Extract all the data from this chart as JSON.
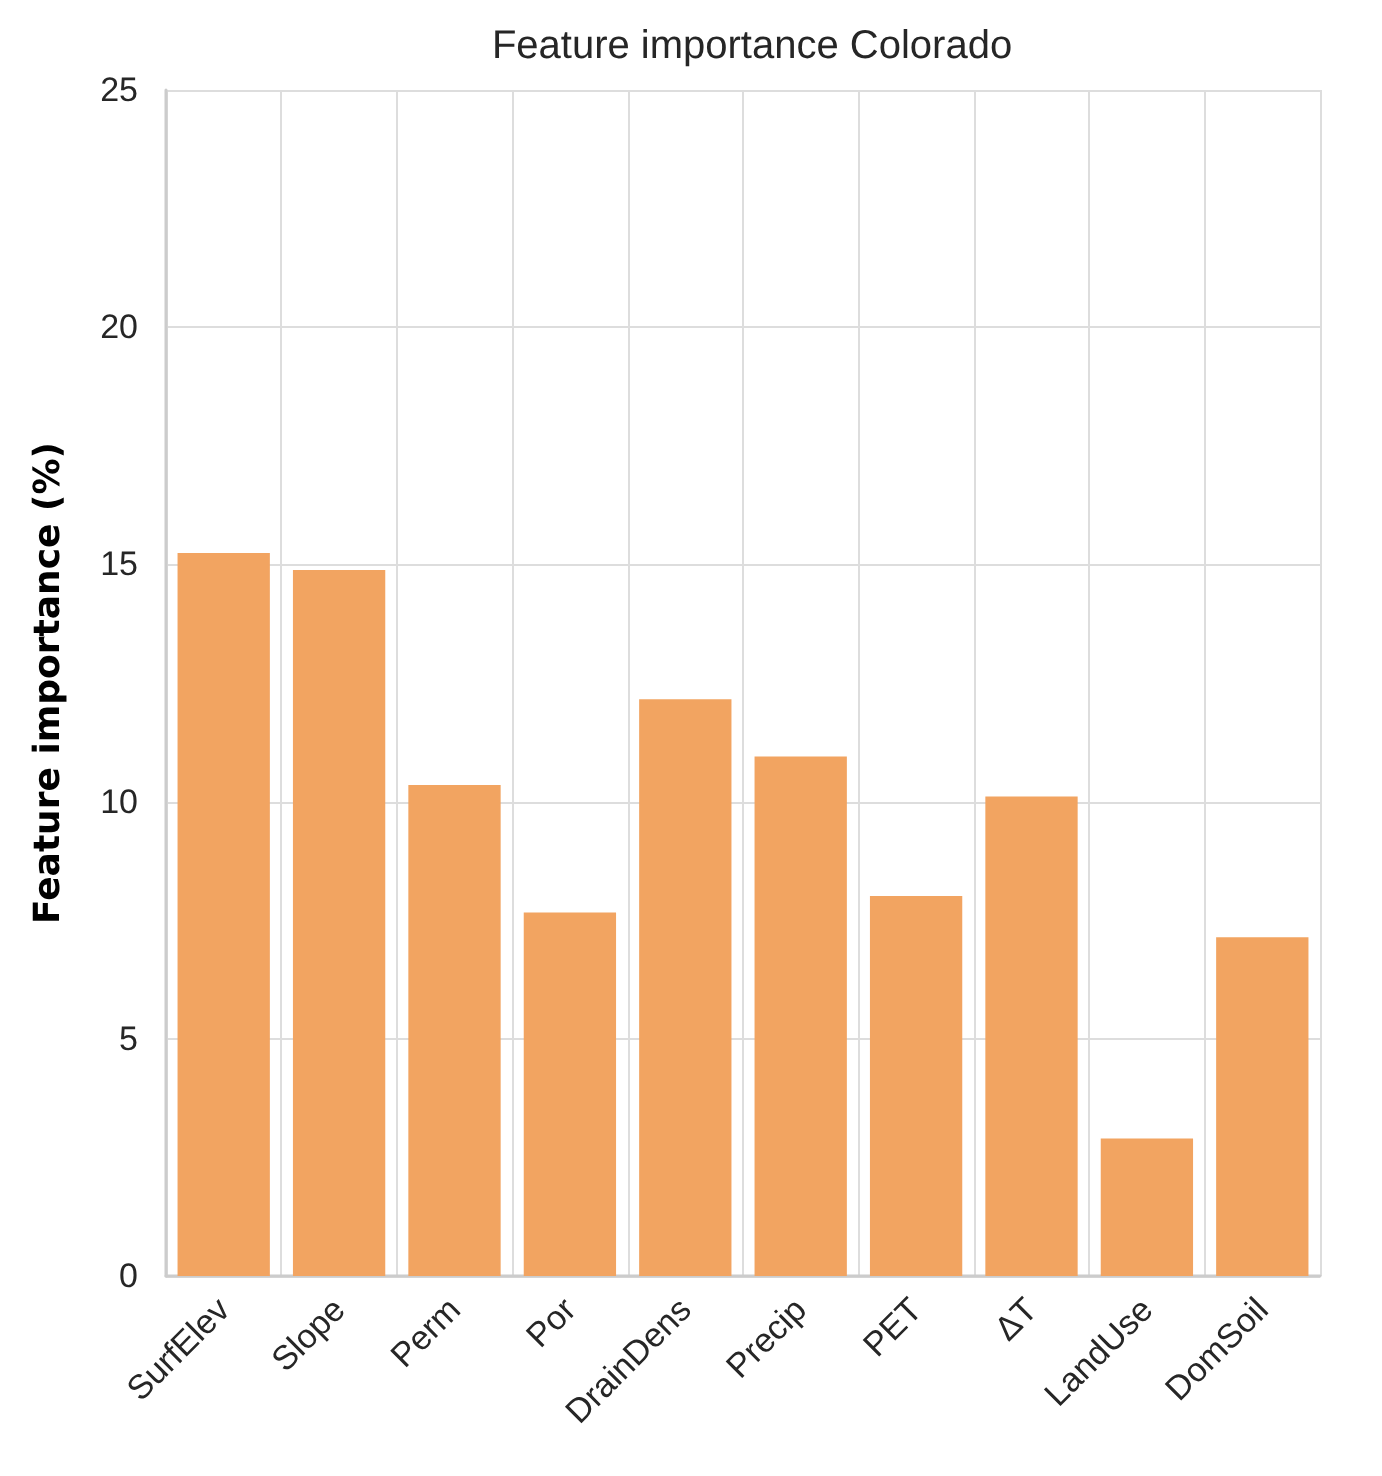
{
  "chart_data": {
    "type": "bar",
    "title": "Feature importance Colorado",
    "ylabel": "Feature importance (%)",
    "categories": [
      "SurfElev",
      "Slope",
      "Perm",
      "Por",
      "DrainDens",
      "Precip",
      "PET",
      "ΔT",
      "LandUse",
      "DomSoil"
    ],
    "values": [
      15.24,
      14.88,
      10.35,
      7.66,
      12.16,
      10.95,
      8.01,
      10.11,
      2.9,
      7.14
    ],
    "color": "#f2a461",
    "ylim": [
      0,
      25
    ],
    "yticks": [
      0,
      5,
      10,
      15,
      20,
      25
    ],
    "grid": true
  }
}
